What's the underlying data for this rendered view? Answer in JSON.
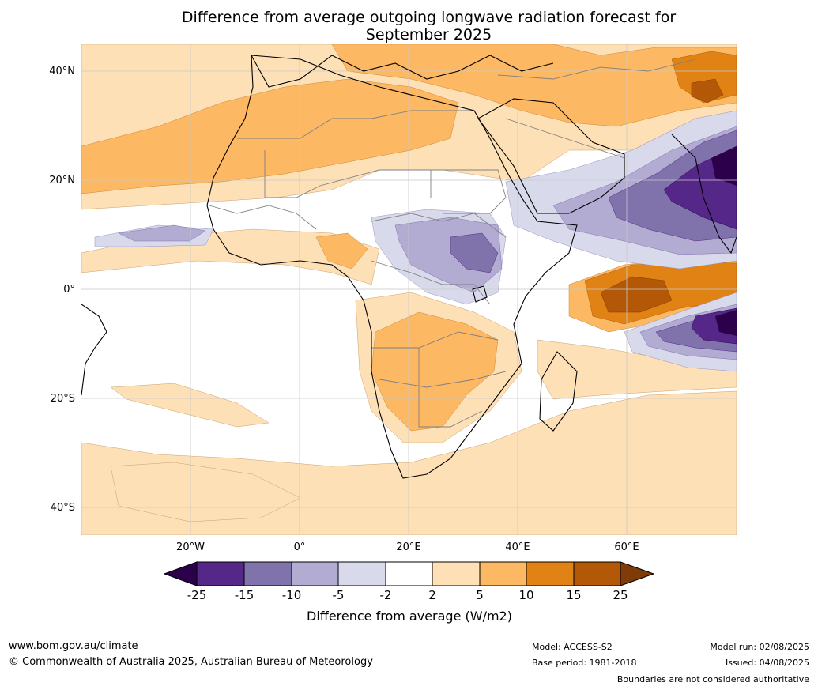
{
  "title_line1": "Difference from average outgoing longwave radiation forecast for",
  "title_line2": "September 2025",
  "map": {
    "lat_labels": [
      "40°N",
      "20°N",
      "0°",
      "20°S",
      "40°S"
    ],
    "lon_labels": [
      "20°W",
      "0°",
      "20°E",
      "40°E",
      "60°E"
    ],
    "colors": {
      "ocean_land_neutral": "#ffffff",
      "coast": "#000000",
      "borders": "#808080",
      "grid": "#c8c8c8"
    },
    "anomaly_regions": [
      {
        "region": "north-atlantic-sahara",
        "category": "5 to 10"
      },
      {
        "region": "south-atlantic",
        "category": "2 to 5"
      },
      {
        "region": "southern-africa",
        "category": "5 to 10"
      },
      {
        "region": "arabian-sea",
        "category": "-25 to -15"
      },
      {
        "region": "central-equatorial-africa",
        "category": "-10 to -5"
      },
      {
        "region": "western-indian-ocean-equatorial",
        "category": "15 to 25"
      },
      {
        "region": "southern-indian-ocean",
        "category": "-25 to -15"
      },
      {
        "region": "iran-highlands",
        "category": "15 to 25"
      }
    ]
  },
  "colorbar": {
    "ticks": [
      "-25",
      "-15",
      "-10",
      "-5",
      "-2",
      "2",
      "5",
      "10",
      "15",
      "25"
    ],
    "colors": [
      "#2d004b",
      "#542788",
      "#8073ac",
      "#b2abd2",
      "#d8daeb",
      "#ffffff",
      "#fee0b6",
      "#fdb863",
      "#e08214",
      "#b35806",
      "#7f3b08"
    ],
    "label": "Difference from average (W/m2)"
  },
  "footer": {
    "website": "www.bom.gov.au/climate",
    "copyright": "© Commonwealth of Australia 2025, Australian Bureau of Meteorology",
    "model": "Model: ACCESS-S2",
    "base_period": "Base period: 1981-2018",
    "model_run": "Model run: 02/08/2025",
    "issued": "Issued: 04/08/2025",
    "disclaimer": "Boundaries are not considered authoritative"
  }
}
